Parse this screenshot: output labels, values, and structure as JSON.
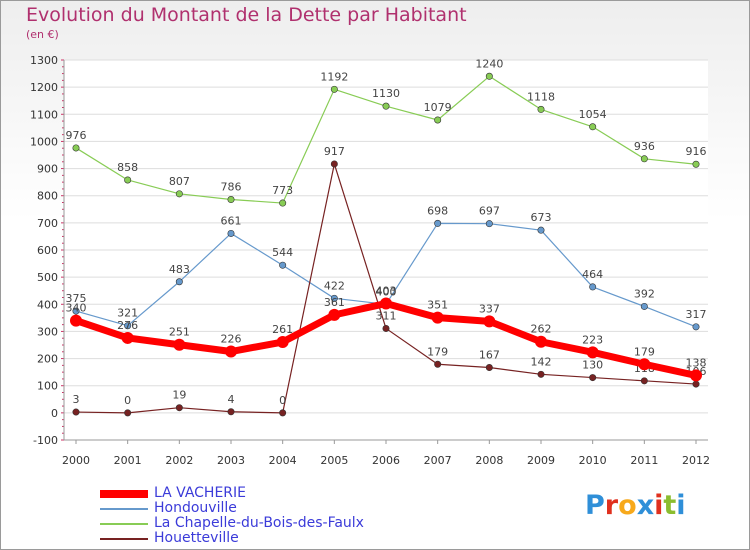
{
  "title": "Evolution du Montant de la Dette par Habitant",
  "subtitle": "(en €)",
  "brand": "Proxiti",
  "brand_colors": [
    "#2f8fd8",
    "#e0301e",
    "#f7a91c",
    "#2f8fd8",
    "#e0301e",
    "#8bbd2f",
    "#2f8fd8"
  ],
  "chart_data": {
    "type": "line",
    "x": [
      2000,
      2001,
      2002,
      2003,
      2004,
      2005,
      2006,
      2007,
      2008,
      2009,
      2010,
      2011,
      2012
    ],
    "ylim": [
      -100,
      1300
    ],
    "yticks": [
      -100,
      0,
      100,
      200,
      300,
      400,
      500,
      600,
      700,
      800,
      900,
      1000,
      1100,
      1200,
      1300
    ],
    "grid": true,
    "legend_position": "bottom-left",
    "series": [
      {
        "name": "LA VACHERIE",
        "color": "#ff0000",
        "width": "thick",
        "values": [
          340,
          276,
          251,
          226,
          261,
          361,
          403,
          351,
          337,
          262,
          223,
          179,
          138
        ]
      },
      {
        "name": "Hondouville",
        "color": "#6699cc",
        "width": "thin",
        "values": [
          375,
          321,
          483,
          661,
          544,
          422,
          400,
          698,
          697,
          673,
          464,
          392,
          317
        ]
      },
      {
        "name": "La Chapelle-du-Bois-des-Faulx",
        "color": "#88cc55",
        "width": "thin",
        "values": [
          976,
          858,
          807,
          786,
          773,
          1192,
          1130,
          1079,
          1240,
          1118,
          1054,
          936,
          916
        ]
      },
      {
        "name": "Houetteville",
        "color": "#772222",
        "width": "thin",
        "values": [
          3,
          0,
          19,
          4,
          0,
          917,
          311,
          179,
          167,
          142,
          130,
          118,
          106
        ]
      }
    ]
  }
}
